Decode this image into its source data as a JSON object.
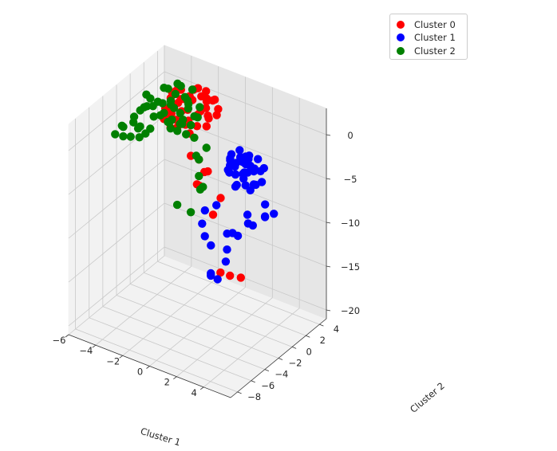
{
  "chart_data": {
    "type": "scatter",
    "projection": "3d",
    "title": "",
    "xlabel": "Cluster 1",
    "ylabel": "Cluster 2",
    "zlabel": "",
    "xlim": [
      -6,
      6
    ],
    "ylim": [
      -9,
      5
    ],
    "zlim": [
      -21,
      3
    ],
    "x_ticks": [
      "−6",
      "−4",
      "−2",
      "0",
      "2",
      "4"
    ],
    "y_ticks": [
      "−8",
      "−6",
      "−4",
      "−2",
      "0",
      "2",
      "4"
    ],
    "z_ticks": [
      "−20",
      "−15",
      "−10",
      "−5",
      "0"
    ],
    "grid": true,
    "legend_position": "upper-right",
    "series": [
      {
        "name": "Cluster 0",
        "color": "#ff0000",
        "points": [
          [
            -3.0,
            0.0,
            2.0
          ],
          [
            -1.0,
            2.2,
            1.5
          ],
          [
            -3.6,
            1.9,
            1.2
          ],
          [
            -2.0,
            -2.0,
            0.5
          ],
          [
            -3.3,
            -0.4,
            -0.3
          ],
          [
            -0.8,
            1.1,
            0.6
          ],
          [
            -2.6,
            1.8,
            -1.5
          ],
          [
            -2.4,
            0.8,
            -1.0
          ],
          [
            -1.6,
            -0.6,
            0.2
          ],
          [
            -1.5,
            1.4,
            0.5
          ],
          [
            -3.8,
            2.7,
            1.0
          ],
          [
            -2.6,
            0.3,
            1.5
          ],
          [
            -3.6,
            1.4,
            1.4
          ],
          [
            -0.9,
            2.3,
            1.6
          ],
          [
            -2.4,
            0.4,
            0.6
          ],
          [
            -1.3,
            0.5,
            -0.5
          ],
          [
            -3.0,
            -0.3,
            0.7
          ],
          [
            -1.9,
            1.0,
            1.8
          ],
          [
            -2.2,
            0.1,
            -0.2
          ],
          [
            -1.2,
            1.6,
            0.9
          ],
          [
            -3.2,
            2.3,
            0.3
          ],
          [
            -2.8,
            1.1,
            1.3
          ],
          [
            -1.7,
            2.6,
            1.9
          ],
          [
            -2.9,
            0.6,
            -0.8
          ],
          [
            -1.9,
            -1.2,
            0.1
          ],
          [
            -0.5,
            1.8,
            0.4
          ],
          [
            -2.3,
            2.0,
            2.1
          ],
          [
            -3.4,
            0.9,
            -0.6
          ],
          [
            -1.1,
            0.2,
            1.1
          ],
          [
            -2.5,
            1.5,
            0.0
          ],
          [
            -1.8,
            2.9,
            0.8
          ],
          [
            -0.7,
            0.7,
            -0.3
          ],
          [
            -3.1,
            1.7,
            1.8
          ],
          [
            -2.0,
            0.8,
            2.3
          ],
          [
            -1.4,
            2.4,
            -0.9
          ],
          [
            -2.7,
            -0.8,
            0.9
          ],
          [
            -1.0,
            1.3,
            2.0
          ],
          [
            -2.1,
            2.7,
            1.0
          ],
          [
            -3.5,
            0.2,
            0.4
          ],
          [
            -1.6,
            0.0,
            -1.2
          ],
          [
            -2.5,
            3.0,
            1.5
          ],
          [
            -0.9,
            2.8,
            0.2
          ],
          [
            -1.4,
            -0.2,
            -3.5
          ],
          [
            -0.4,
            0.3,
            -5.0
          ],
          [
            0.0,
            -1.0,
            -4.0
          ],
          [
            -0.8,
            -0.5,
            -6.2
          ],
          [
            -0.2,
            -1.3,
            -5.5
          ],
          [
            0.9,
            -1.5,
            -8.0
          ],
          [
            1.6,
            -1.8,
            -14.0
          ],
          [
            2.0,
            -1.2,
            -14.5
          ],
          [
            2.5,
            -0.6,
            -14.8
          ],
          [
            0.8,
            -0.2,
            -7.0
          ],
          [
            -0.5,
            -0.8,
            -3.0
          ]
        ]
      },
      {
        "name": "Cluster 1",
        "color": "#0000ff",
        "points": [
          [
            2.0,
            1.0,
            -3.0
          ],
          [
            2.8,
            -0.9,
            -2.6
          ],
          [
            1.3,
            1.6,
            -2.4
          ],
          [
            1.9,
            -0.1,
            -2.4
          ],
          [
            3.1,
            0.4,
            -4.5
          ],
          [
            1.4,
            0.2,
            -1.9
          ],
          [
            2.5,
            1.3,
            -3.9
          ],
          [
            1.6,
            -0.7,
            -3.0
          ],
          [
            2.2,
            0.7,
            -2.0
          ],
          [
            3.4,
            -0.5,
            -3.7
          ],
          [
            1.8,
            1.9,
            -3.3
          ],
          [
            2.4,
            -1.2,
            -4.1
          ],
          [
            1.1,
            0.6,
            -2.8
          ],
          [
            2.9,
            0.0,
            -2.2
          ],
          [
            2.0,
            1.4,
            -4.4
          ],
          [
            3.2,
            0.9,
            -3.2
          ],
          [
            1.5,
            -0.3,
            -3.6
          ],
          [
            2.6,
            1.7,
            -2.7
          ],
          [
            1.9,
            -1.0,
            -2.1
          ],
          [
            3.0,
            -0.2,
            -4.8
          ],
          [
            2.3,
            0.3,
            -3.5
          ],
          [
            1.2,
            1.1,
            -4.0
          ],
          [
            2.7,
            -0.6,
            -3.4
          ],
          [
            1.7,
            0.9,
            -2.5
          ],
          [
            3.3,
            1.2,
            -3.0
          ],
          [
            2.1,
            -0.4,
            -4.6
          ],
          [
            1.4,
            1.8,
            -3.8
          ],
          [
            2.9,
            0.6,
            -2.9
          ],
          [
            2.2,
            -0.8,
            -3.1
          ],
          [
            1.6,
            0.4,
            -4.2
          ],
          [
            3.1,
            -1.1,
            -3.6
          ],
          [
            2.5,
            0.1,
            -2.3
          ],
          [
            1.0,
            0.8,
            -3.2
          ],
          [
            3.5,
            0.5,
            -4.0
          ],
          [
            2.0,
            1.6,
            -2.6
          ],
          [
            4.5,
            -1.0,
            -5.0
          ],
          [
            4.8,
            -1.6,
            -5.8
          ],
          [
            5.0,
            -2.0,
            -5.5
          ],
          [
            4.2,
            -2.2,
            -6.8
          ],
          [
            5.3,
            -1.3,
            -5.4
          ],
          [
            3.6,
            -1.8,
            -6.2
          ],
          [
            4.0,
            -2.5,
            -6.5
          ],
          [
            3.0,
            -2.8,
            -8.0
          ],
          [
            3.5,
            -3.0,
            -7.9
          ],
          [
            2.5,
            -2.6,
            -8.5
          ],
          [
            1.6,
            -3.2,
            -10.0
          ],
          [
            1.8,
            -3.6,
            -12.8
          ],
          [
            2.8,
            -3.4,
            -11.0
          ],
          [
            3.2,
            -4.0,
            -9.0
          ],
          [
            2.4,
            -3.8,
            -13.0
          ],
          [
            2.1,
            -4.2,
            -12.5
          ],
          [
            0.9,
            -3.1,
            -8.0
          ],
          [
            1.0,
            -2.9,
            -9.5
          ],
          [
            0.5,
            -1.9,
            -7.5
          ],
          [
            1.4,
            -2.0,
            -6.3
          ]
        ]
      },
      {
        "name": "Cluster 2",
        "color": "#008000",
        "points": [
          [
            -3.0,
            1.0,
            3.0
          ],
          [
            -2.0,
            0.5,
            2.0
          ],
          [
            -1.0,
            0.0,
            1.0
          ],
          [
            -4.0,
            -1.0,
            2.0
          ],
          [
            -3.5,
            0.0,
            0.0
          ],
          [
            -2.5,
            -0.5,
            1.5
          ],
          [
            -1.5,
            0.5,
            0.5
          ],
          [
            -3.0,
            -1.5,
            1.0
          ],
          [
            -2.0,
            -1.0,
            -0.5
          ],
          [
            -4.5,
            -0.5,
            0.5
          ],
          [
            -3.5,
            -2.0,
            -0.5
          ],
          [
            -1.0,
            -0.5,
            -1.0
          ],
          [
            -2.8,
            0.3,
            2.4
          ],
          [
            -2.2,
            -0.2,
            0.9
          ],
          [
            -3.2,
            -0.8,
            1.8
          ],
          [
            -1.8,
            0.2,
            1.4
          ],
          [
            -3.8,
            -0.3,
            1.3
          ],
          [
            -2.6,
            -1.2,
            0.3
          ],
          [
            -1.4,
            -0.2,
            0.0
          ],
          [
            -3.3,
            0.6,
            0.7
          ],
          [
            -2.4,
            0.9,
            1.9
          ],
          [
            -4.2,
            -1.5,
            1.2
          ],
          [
            -3.0,
            -0.1,
            -0.6
          ],
          [
            -1.7,
            -0.9,
            0.4
          ],
          [
            -2.9,
            1.3,
            2.6
          ],
          [
            -3.9,
            -0.7,
            -0.2
          ],
          [
            -2.1,
            -1.6,
            1.1
          ],
          [
            -1.2,
            0.7,
            1.6
          ],
          [
            -3.6,
            0.8,
            2.2
          ],
          [
            -2.7,
            -0.6,
            -0.9
          ],
          [
            -4.8,
            -0.9,
            0.1
          ],
          [
            -4.6,
            -0.4,
            1.7
          ],
          [
            -3.4,
            -1.8,
            2.0
          ],
          [
            -2.3,
            0.4,
            -0.3
          ],
          [
            -1.6,
            -1.4,
            0.8
          ],
          [
            -2.0,
            1.2,
            2.8
          ],
          [
            -3.1,
            0.2,
            1.5
          ],
          [
            -1.3,
            -1.1,
            -0.4
          ],
          [
            -2.5,
            1.6,
            0.6
          ],
          [
            -3.7,
            0.4,
            2.5
          ],
          [
            -5.0,
            -1.5,
            -1.0
          ],
          [
            -5.5,
            -2.0,
            -1.5
          ],
          [
            -5.2,
            -1.0,
            -0.8
          ],
          [
            -5.8,
            -1.6,
            -1.8
          ],
          [
            -6.0,
            -2.2,
            -2.5
          ],
          [
            -4.8,
            -2.3,
            -2.0
          ],
          [
            -4.5,
            -1.8,
            -1.2
          ],
          [
            -4.2,
            -2.1,
            -0.6
          ],
          [
            -5.3,
            -2.4,
            -2.2
          ],
          [
            -4.0,
            -2.6,
            -1.4
          ],
          [
            -3.6,
            -2.5,
            -0.8
          ],
          [
            -0.5,
            -0.8,
            -3.0
          ],
          [
            0.0,
            -1.6,
            -5.6
          ],
          [
            -0.3,
            -1.2,
            -4.5
          ],
          [
            0.3,
            -1.8,
            -5.0
          ],
          [
            -0.8,
            -1.4,
            -8.8
          ],
          [
            -1.5,
            -2.0,
            -8.0
          ],
          [
            -0.6,
            -1.0,
            -2.5
          ],
          [
            -0.2,
            -0.3,
            -1.8
          ]
        ]
      }
    ]
  }
}
